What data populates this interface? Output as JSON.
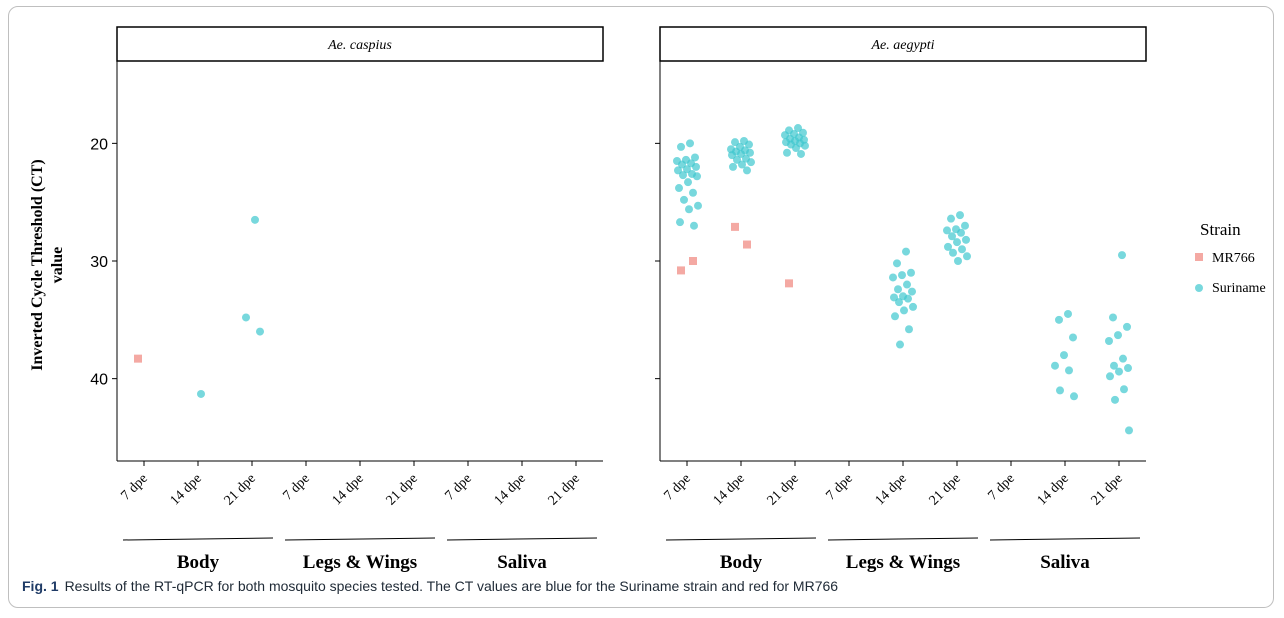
{
  "chart_data": {
    "type": "scatter",
    "ylabel": "Inverted Cycle Threshold (CT) value",
    "ylabel_lines": [
      "Inverted Cycle Threshold (CT)",
      "value"
    ],
    "ylim_inverted": [
      47,
      13
    ],
    "yticks": [
      20,
      30,
      40
    ],
    "legend": {
      "title": "Strain",
      "placement": "right",
      "entries": [
        {
          "name": "MR766",
          "marker": "square",
          "color": "#f4a9a3"
        },
        {
          "name": "Suriname",
          "marker": "circle",
          "color": "#3ec8cf"
        }
      ]
    },
    "categories": [
      "7 dpe",
      "14 dpe",
      "21 dpe",
      "7 dpe",
      "14 dpe",
      "21 dpe",
      "7 dpe",
      "14 dpe",
      "21 dpe"
    ],
    "groups": [
      "Body",
      "Legs & Wings",
      "Saliva"
    ],
    "panels": [
      {
        "title": "Ae. caspius",
        "series": [
          {
            "name": "MR766",
            "points": [
              [
                0,
                38.3
              ]
            ]
          },
          {
            "name": "Suriname",
            "points": [
              [
                1,
                41.3
              ],
              [
                2,
                26.5
              ],
              [
                2,
                34.8
              ],
              [
                2,
                36.0
              ]
            ]
          }
        ]
      },
      {
        "title": "Ae. aegypti",
        "series": [
          {
            "name": "MR766",
            "points": [
              [
                0,
                30.8
              ],
              [
                0,
                30.0
              ],
              [
                1,
                27.1
              ],
              [
                1,
                28.6
              ],
              [
                2,
                31.9
              ]
            ]
          },
          {
            "name": "Suriname",
            "points": [
              [
                0,
                20.0
              ],
              [
                0,
                20.3
              ],
              [
                0,
                21.2
              ],
              [
                0,
                21.4
              ],
              [
                0,
                21.5
              ],
              [
                0,
                21.7
              ],
              [
                0,
                21.8
              ],
              [
                0,
                22.0
              ],
              [
                0,
                22.2
              ],
              [
                0,
                22.3
              ],
              [
                0,
                22.6
              ],
              [
                0,
                22.7
              ],
              [
                0,
                22.8
              ],
              [
                0,
                23.3
              ],
              [
                0,
                23.8
              ],
              [
                0,
                24.2
              ],
              [
                0,
                24.8
              ],
              [
                0,
                25.3
              ],
              [
                0,
                25.6
              ],
              [
                0,
                26.7
              ],
              [
                0,
                27.0
              ],
              [
                1,
                19.8
              ],
              [
                1,
                19.9
              ],
              [
                1,
                20.1
              ],
              [
                1,
                20.3
              ],
              [
                1,
                20.5
              ],
              [
                1,
                20.6
              ],
              [
                1,
                20.7
              ],
              [
                1,
                20.8
              ],
              [
                1,
                20.9
              ],
              [
                1,
                21.0
              ],
              [
                1,
                21.3
              ],
              [
                1,
                21.4
              ],
              [
                1,
                21.6
              ],
              [
                1,
                21.8
              ],
              [
                1,
                22.0
              ],
              [
                1,
                22.3
              ],
              [
                2,
                18.7
              ],
              [
                2,
                18.9
              ],
              [
                2,
                19.1
              ],
              [
                2,
                19.2
              ],
              [
                2,
                19.3
              ],
              [
                2,
                19.5
              ],
              [
                2,
                19.6
              ],
              [
                2,
                19.7
              ],
              [
                2,
                19.8
              ],
              [
                2,
                19.9
              ],
              [
                2,
                20.0
              ],
              [
                2,
                20.1
              ],
              [
                2,
                20.2
              ],
              [
                2,
                20.4
              ],
              [
                2,
                20.8
              ],
              [
                2,
                20.9
              ],
              [
                4,
                29.2
              ],
              [
                4,
                30.2
              ],
              [
                4,
                31.0
              ],
              [
                4,
                31.2
              ],
              [
                4,
                31.4
              ],
              [
                4,
                32.0
              ],
              [
                4,
                32.4
              ],
              [
                4,
                32.6
              ],
              [
                4,
                33.0
              ],
              [
                4,
                33.1
              ],
              [
                4,
                33.2
              ],
              [
                4,
                33.5
              ],
              [
                4,
                33.9
              ],
              [
                4,
                34.2
              ],
              [
                4,
                34.7
              ],
              [
                4,
                35.8
              ],
              [
                4,
                37.1
              ],
              [
                5,
                26.1
              ],
              [
                5,
                26.4
              ],
              [
                5,
                27.0
              ],
              [
                5,
                27.3
              ],
              [
                5,
                27.4
              ],
              [
                5,
                27.6
              ],
              [
                5,
                27.9
              ],
              [
                5,
                28.2
              ],
              [
                5,
                28.4
              ],
              [
                5,
                28.8
              ],
              [
                5,
                29.0
              ],
              [
                5,
                29.3
              ],
              [
                5,
                29.6
              ],
              [
                5,
                30.0
              ],
              [
                7,
                34.5
              ],
              [
                7,
                35.0
              ],
              [
                7,
                36.5
              ],
              [
                7,
                38.0
              ],
              [
                7,
                38.9
              ],
              [
                7,
                39.3
              ],
              [
                7,
                41.0
              ],
              [
                7,
                41.5
              ],
              [
                8,
                29.5
              ],
              [
                8,
                34.8
              ],
              [
                8,
                35.6
              ],
              [
                8,
                36.3
              ],
              [
                8,
                36.8
              ],
              [
                8,
                38.3
              ],
              [
                8,
                38.9
              ],
              [
                8,
                39.1
              ],
              [
                8,
                39.4
              ],
              [
                8,
                39.8
              ],
              [
                8,
                40.9
              ],
              [
                8,
                41.8
              ],
              [
                8,
                44.4
              ]
            ]
          }
        ]
      }
    ]
  },
  "caption": {
    "label": "Fig. 1",
    "text": "Results of the RT-qPCR for both mosquito species tested. The CT values are blue for the Suriname strain and red for MR766"
  }
}
